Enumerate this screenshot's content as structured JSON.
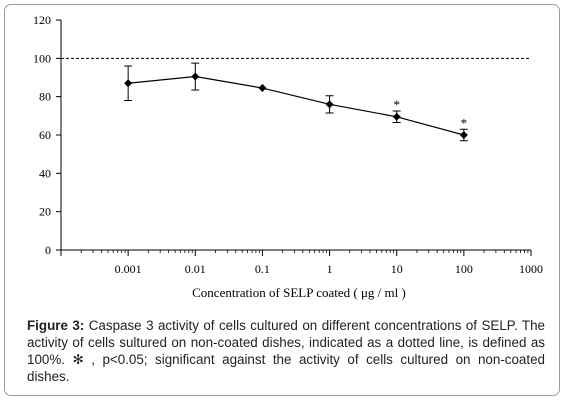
{
  "chart_data": {
    "type": "line",
    "xscale": "log",
    "x_ticks": [
      "0.001",
      "0.01",
      "0.1",
      "1",
      "10",
      "100",
      "1000"
    ],
    "x_tick_values": [
      0.001,
      0.01,
      0.1,
      1,
      10,
      100,
      1000
    ],
    "xlim": [
      0.0001,
      1000
    ],
    "y_ticks": [
      "0",
      "20",
      "40",
      "60",
      "80",
      "100",
      "120"
    ],
    "ylim": [
      0,
      120
    ],
    "xlabel": "Concentration of SELP coated ( μg / ml )",
    "ylabel": "",
    "reference_line": 100,
    "series": [
      {
        "x": [
          0.001,
          0.01,
          0.1,
          1,
          10,
          100
        ],
        "y": [
          87,
          90.5,
          84.5,
          76,
          69.5,
          60
        ],
        "error": [
          9,
          7,
          0,
          4.5,
          3,
          3
        ],
        "significant": [
          "",
          "",
          "",
          "",
          "*",
          "*"
        ]
      }
    ],
    "color": "#000000"
  },
  "caption": {
    "label": "Figure 3:",
    "text": " Caspase 3 activity of cells cultured on different concentrations of SELP. The activity of cells sultured on non-coated dishes, indicated as a dotted line, is defined as 100%. ✻ , p<0.05; significant against the activity of cells cultured on non-coated dishes."
  }
}
